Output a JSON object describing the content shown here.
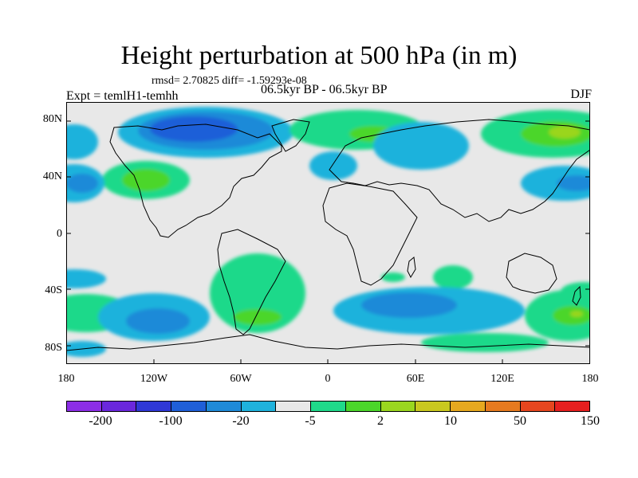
{
  "title": "Height perturbation at 500 hPa (in m)",
  "stats": "rmsd= 2.70825 diff= -1.59293e-08",
  "period": "06.5kyr BP - 06.5kyr BP",
  "experiment": "Expt = temlH1-temhh",
  "season": "DJF",
  "map": {
    "y_axis": {
      "labels": [
        "80N",
        "40N",
        "0",
        "40S",
        "80S"
      ]
    },
    "x_axis": {
      "labels": [
        "180",
        "120W",
        "60W",
        "0",
        "60E",
        "120E",
        "180"
      ]
    },
    "background_color": "#e8e8e8"
  },
  "colorbar": {
    "colors": [
      "#8c2ee6",
      "#6a28dc",
      "#2f38d6",
      "#1f5fd8",
      "#1f8ad8",
      "#1fb2dc",
      "#e8e8e8",
      "#1fd98a",
      "#4bd62a",
      "#9ad61f",
      "#c9c81f",
      "#e6a81f",
      "#e67a1f",
      "#e6461f",
      "#e61f1f"
    ],
    "labels": [
      "-200",
      "-100",
      "-20",
      "-5",
      "2",
      "10",
      "50",
      "150"
    ]
  }
}
